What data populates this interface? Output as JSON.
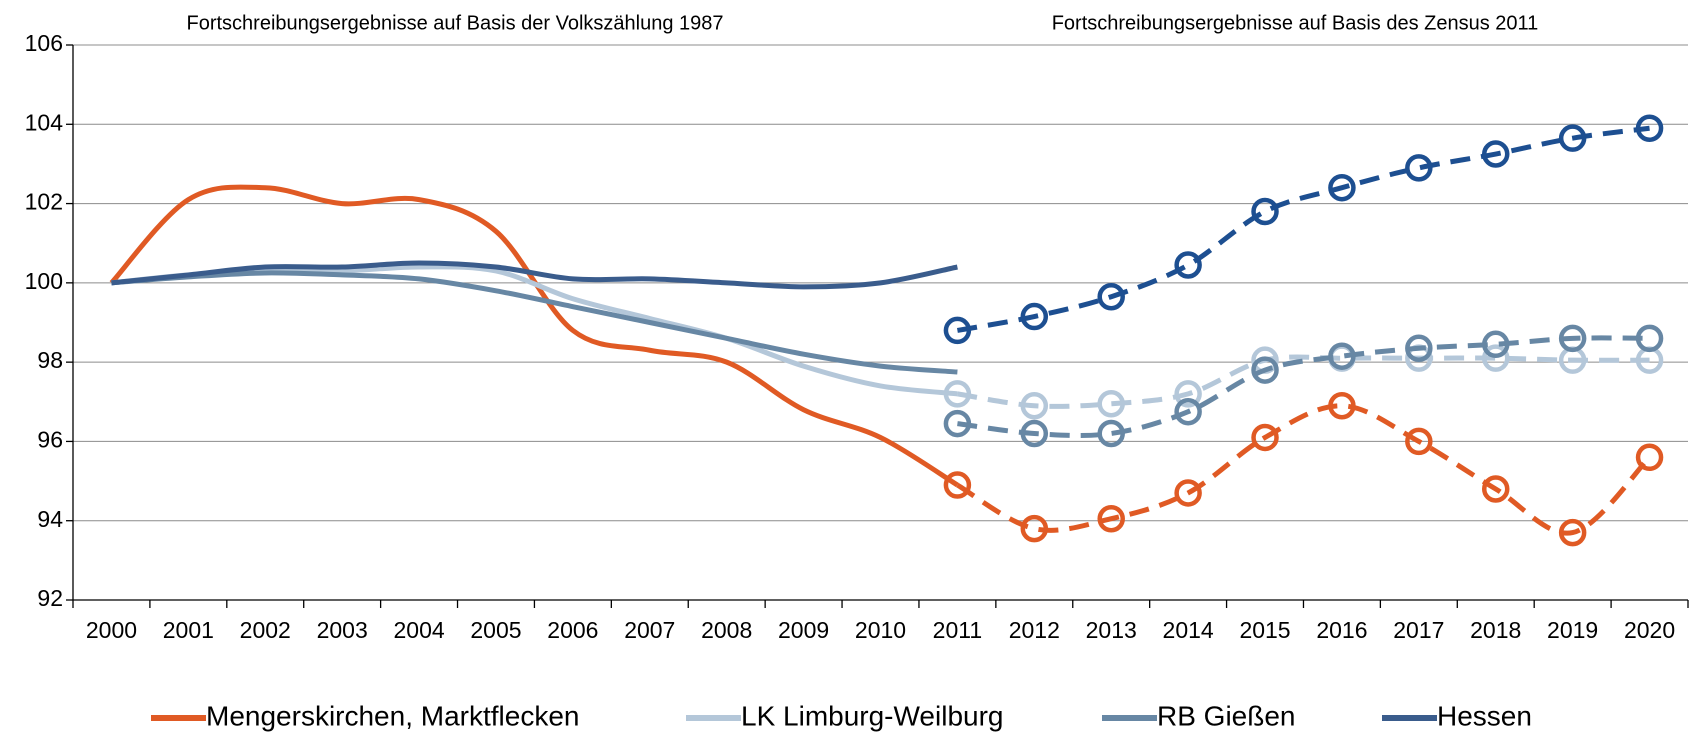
{
  "chart_data": {
    "type": "line",
    "annotations": [
      "Fortschreibungsergebnisse auf Basis der Volkszählung 1987",
      "Fortschreibungsergebnisse auf Basis des Zensus 2011"
    ],
    "categories": [
      "2000",
      "2001",
      "2002",
      "2003",
      "2004",
      "2005",
      "2006",
      "2007",
      "2008",
      "2009",
      "2010",
      "2011",
      "2012",
      "2013",
      "2014",
      "2015",
      "2016",
      "2017",
      "2018",
      "2019",
      "2020"
    ],
    "series": [
      {
        "name": "Mengerskirchen, Marktflecken",
        "color": "#e05a24",
        "zensus_color": "#e05a24",
        "values": [
          100,
          102.1,
          102.4,
          102.0,
          102.1,
          101.3,
          98.8,
          98.3,
          98.0,
          96.8,
          96.1,
          94.9,
          null,
          null,
          null,
          null,
          null,
          null,
          null,
          null,
          null
        ],
        "zensus_values": [
          null,
          null,
          null,
          null,
          null,
          null,
          null,
          null,
          null,
          null,
          null,
          94.9,
          93.8,
          94.05,
          94.7,
          96.1,
          96.9,
          96.0,
          94.8,
          93.7,
          95.6
        ]
      },
      {
        "name": "LK Limburg-Weilburg",
        "color": "#b4c7d9",
        "zensus_color": "#b4c7d9",
        "values": [
          100,
          100.2,
          100.3,
          100.3,
          100.4,
          100.3,
          99.6,
          99.1,
          98.6,
          97.9,
          97.4,
          97.2,
          null,
          null,
          null,
          null,
          null,
          null,
          null,
          null,
          null
        ],
        "zensus_values": [
          null,
          null,
          null,
          null,
          null,
          null,
          null,
          null,
          null,
          null,
          null,
          97.2,
          96.9,
          96.95,
          97.2,
          98.05,
          98.1,
          98.1,
          98.1,
          98.05,
          98.05
        ]
      },
      {
        "name": "RB Gießen",
        "color": "#6787a4",
        "zensus_color": "#6787a4",
        "values": [
          100,
          100.15,
          100.25,
          100.2,
          100.1,
          99.8,
          99.4,
          99.0,
          98.6,
          98.2,
          97.9,
          97.75,
          null,
          null,
          null,
          null,
          null,
          null,
          null,
          null,
          null
        ],
        "zensus_values": [
          null,
          null,
          null,
          null,
          null,
          null,
          null,
          null,
          null,
          null,
          null,
          96.45,
          96.2,
          96.2,
          96.75,
          97.8,
          98.15,
          98.35,
          98.45,
          98.6,
          98.6
        ]
      },
      {
        "name": "Hessen",
        "color": "#3a5c8c",
        "zensus_color": "#1d4f91",
        "values": [
          100,
          100.2,
          100.4,
          100.4,
          100.5,
          100.4,
          100.1,
          100.1,
          100.0,
          99.9,
          100.0,
          100.4,
          null,
          null,
          null,
          null,
          null,
          null,
          null,
          null,
          null
        ],
        "zensus_values": [
          null,
          null,
          null,
          null,
          null,
          null,
          null,
          null,
          null,
          null,
          null,
          98.8,
          99.15,
          99.65,
          100.45,
          101.8,
          102.4,
          102.9,
          103.25,
          103.65,
          103.9
        ]
      }
    ],
    "ylim": [
      92,
      106
    ],
    "yticks": [
      92,
      94,
      96,
      98,
      100,
      102,
      104,
      106
    ],
    "grid": true,
    "legend": "bottom"
  }
}
